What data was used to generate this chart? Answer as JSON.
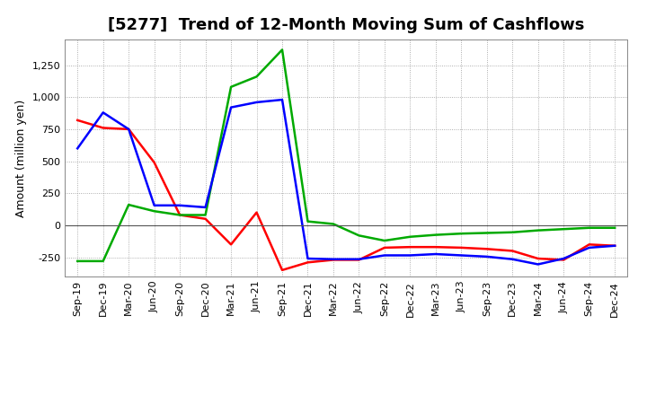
{
  "title": "[5277]  Trend of 12-Month Moving Sum of Cashflows",
  "ylabel": "Amount (million yen)",
  "x_labels": [
    "Sep-19",
    "Dec-19",
    "Mar-20",
    "Jun-20",
    "Sep-20",
    "Dec-20",
    "Mar-21",
    "Jun-21",
    "Sep-21",
    "Dec-21",
    "Mar-22",
    "Jun-22",
    "Sep-22",
    "Dec-22",
    "Mar-23",
    "Jun-23",
    "Sep-23",
    "Dec-23",
    "Mar-24",
    "Jun-24",
    "Sep-24",
    "Dec-24"
  ],
  "operating_cashflow": [
    820,
    760,
    750,
    490,
    80,
    50,
    -150,
    100,
    -350,
    -290,
    -270,
    -270,
    -175,
    -170,
    -170,
    -175,
    -185,
    -200,
    -260,
    -270,
    -150,
    -160
  ],
  "investing_cashflow": [
    -280,
    -280,
    160,
    110,
    80,
    80,
    1080,
    1160,
    1370,
    30,
    10,
    -80,
    -120,
    -90,
    -75,
    -65,
    -60,
    -55,
    -40,
    -30,
    -20,
    -20
  ],
  "free_cashflow": [
    600,
    880,
    750,
    155,
    155,
    140,
    920,
    960,
    980,
    -260,
    -265,
    -265,
    -235,
    -235,
    -225,
    -235,
    -245,
    -265,
    -305,
    -260,
    -175,
    -160
  ],
  "operating_color": "#ff0000",
  "investing_color": "#00aa00",
  "free_color": "#0000ff",
  "ylim": [
    -400,
    1450
  ],
  "yticks": [
    -250,
    0,
    250,
    500,
    750,
    1000,
    1250
  ],
  "background_color": "#ffffff",
  "grid_color": "#999999",
  "line_width": 1.8,
  "title_fontsize": 13,
  "label_fontsize": 9,
  "tick_fontsize": 8,
  "legend_fontsize": 9
}
